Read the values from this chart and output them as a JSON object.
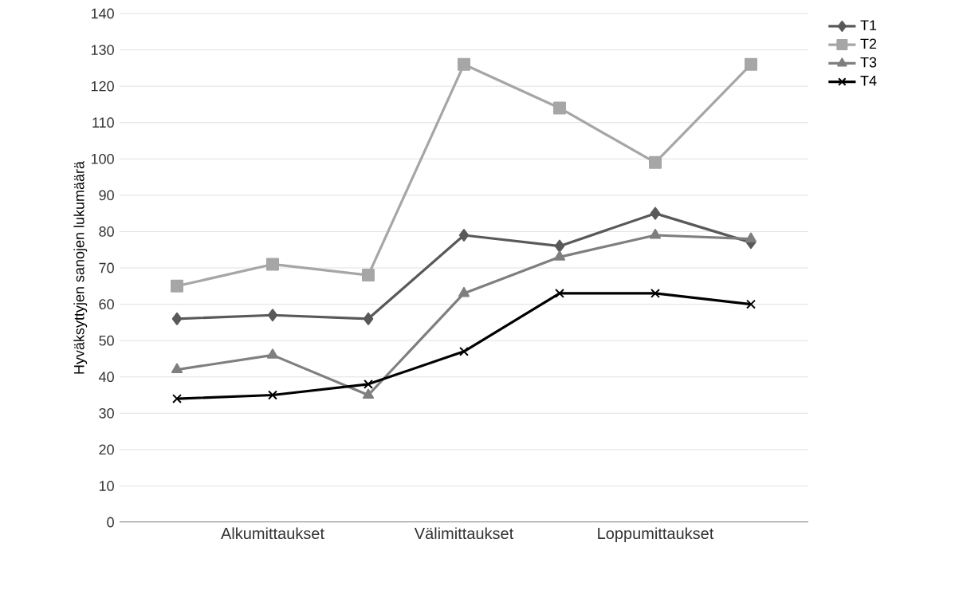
{
  "chart_data": {
    "type": "line",
    "ylabel": "Hyväksyttyjen sanojen lukumäärä",
    "categories": [
      null,
      "Alkumittaukset",
      null,
      "Välimittaukset",
      null,
      "Loppumittaukset",
      null
    ],
    "series": [
      {
        "name": "T1",
        "color": "#595959",
        "marker": "diamond",
        "values": [
          56,
          57,
          56,
          79,
          76,
          85,
          77
        ]
      },
      {
        "name": "T2",
        "color": "#a6a6a6",
        "marker": "square",
        "values": [
          65,
          71,
          68,
          126,
          114,
          99,
          126
        ]
      },
      {
        "name": "T3",
        "color": "#7f7f7f",
        "marker": "triangle",
        "values": [
          42,
          46,
          35,
          63,
          73,
          79,
          78
        ]
      },
      {
        "name": "T4",
        "color": "#000000",
        "marker": "cross",
        "values": [
          34,
          35,
          38,
          47,
          63,
          63,
          60
        ]
      }
    ],
    "ylim": [
      0,
      140
    ],
    "yticks": [
      0,
      10,
      20,
      30,
      40,
      50,
      60,
      70,
      80,
      90,
      100,
      110,
      120,
      130,
      140
    ],
    "grid": "y",
    "legend": "top right",
    "line_style": "solid"
  }
}
